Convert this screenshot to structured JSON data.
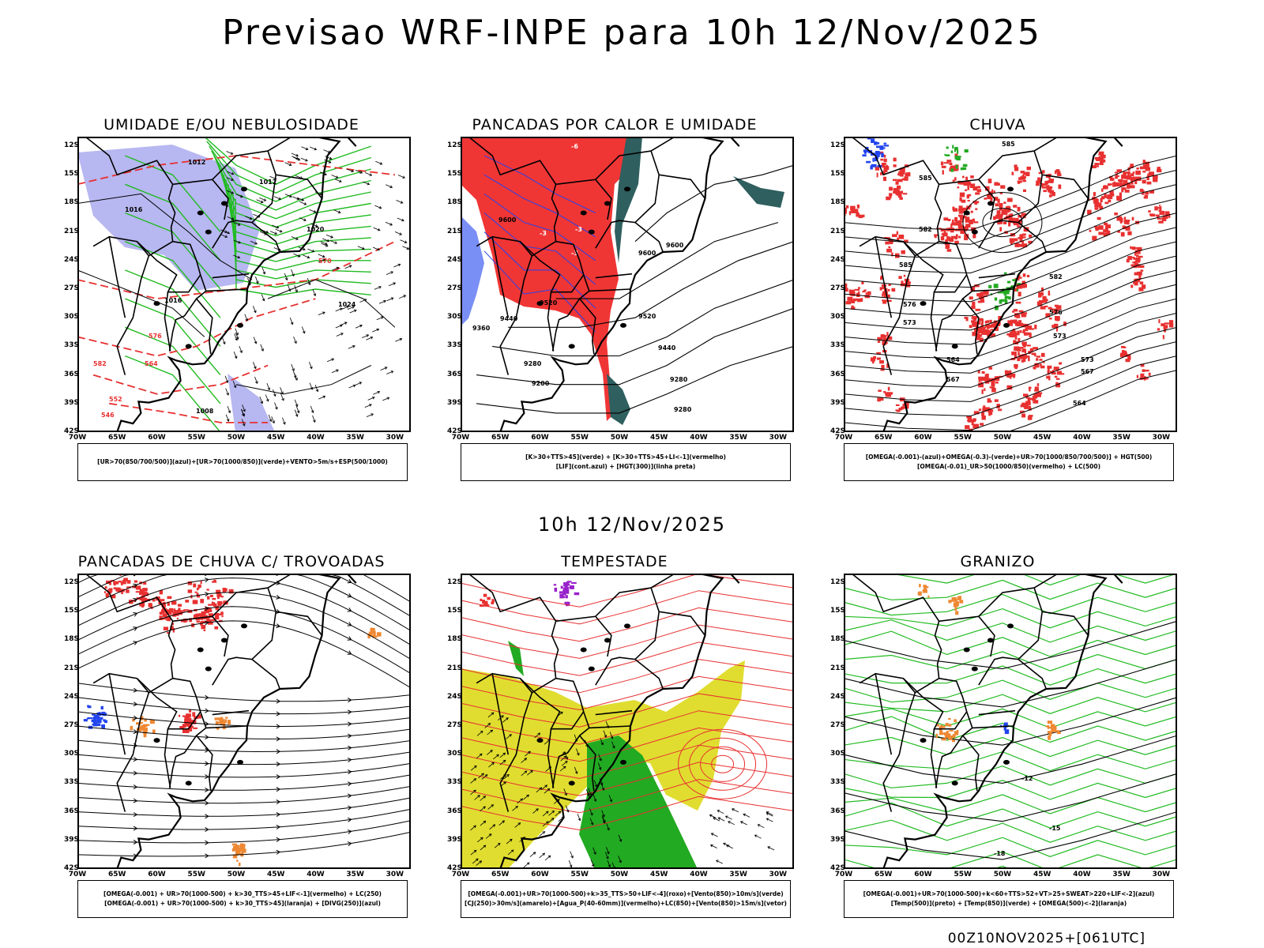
{
  "title": "Previsao WRF-INPE  para 10h 12/Nov/2025",
  "subtitle": "10h 12/Nov/2025",
  "footer": "00Z10NOV2025+[061UTC]",
  "lat_labels": [
    "12S",
    "15S",
    "18S",
    "21S",
    "24S",
    "27S",
    "30S",
    "33S",
    "36S",
    "39S",
    "42S"
  ],
  "lon_labels": [
    "70W",
    "65W",
    "60W",
    "55W",
    "50W",
    "45W",
    "40W",
    "35W",
    "30W"
  ],
  "panels": [
    {
      "title": "UMIDADE E/OU NEBULOSIDADE",
      "legend": [
        "[UR>70(850/700/500)](azul)+[UR>70(1000/850)](verde)+VENTO>5m/s+ESP(500/1000)"
      ]
    },
    {
      "title": "PANCADAS POR CALOR E UMIDADE",
      "legend": [
        "[K>30+TTS>45](verde) + [K>30+TTS>45+LI<-1](vermelho)",
        "[LIF](cont.azul) + [HGT(300)](linha preta)"
      ]
    },
    {
      "title": "CHUVA",
      "legend": [
        "[OMEGA(-0.001)-(azul)+OMEGA(-0.3)-(verde)+UR>70(1000/850/700/500)] + HGT(500)",
        "[OMEGA(-0.01)_UR>50(1000/850)(vermelho) + LC(500)"
      ]
    },
    {
      "title": "PANCADAS DE CHUVA C/ TROVOADAS",
      "legend": [
        "[OMEGA(-0.001) + UR>70(1000-500) + k>30_TTS>45+LIF<-1](vermelho) + LC(250)",
        "[OMEGA(-0.001) + UR>70(1000-500) + k>30_TTS>45](laranja) + [DIVG(250)](azul)"
      ]
    },
    {
      "title": "TEMPESTADE",
      "legend": [
        "[OMEGA(-0.001)+UR>70(1000-500)+k>35_TTS>50+LIF<-4](roxo)+[Vento(850)>10m/s](verde)",
        "[CJ(250)>30m/s](amarelo)+[Agua_P(40-60mm)](vermelho)+LC(850)+[Vento(850)>15m/s](vetor)"
      ]
    },
    {
      "title": "GRANIZO",
      "legend": [
        "[OMEGA(-0.001)+UR>70(1000-500)+k<60+TTS>52+VT>25+SWEAT>220+LIF<-2](azul)",
        "[Temp(500)](preto) + [Temp(850)](verde) + [OMEGA(500)<-2](laranja)"
      ]
    }
  ],
  "contour_labels": {
    "p1": [
      "1016",
      "1012",
      "1020",
      "1024",
      "576",
      "582",
      "570",
      "564",
      "552",
      "546",
      "1008"
    ],
    "p2": [
      "9600",
      "9520",
      "9440",
      "9360",
      "9280",
      "9200",
      "-3",
      "-6"
    ],
    "p3": [
      "585",
      "582",
      "579",
      "576",
      "573",
      "567",
      "564"
    ],
    "p6": [
      "-12",
      "-15",
      "-18"
    ]
  },
  "colors": {
    "blue_fill": "#aaaaee",
    "green_line": "#22bb22",
    "red_line": "#e83030",
    "red_fill": "#f03535",
    "dark_teal": "#2f5f5f",
    "blue": "#2244ee",
    "orange": "#ee8833",
    "yellow": "#e0dd30",
    "green_fill": "#22aa22",
    "purple": "#9922cc"
  }
}
